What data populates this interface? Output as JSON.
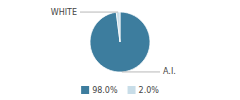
{
  "chart_data": {
    "type": "pie",
    "categories": [
      "A.I.",
      "WHITE"
    ],
    "values": [
      98.0,
      2.0
    ],
    "value_labels": [
      "98.0%",
      "2.0%"
    ],
    "colors": [
      "#3d7d9e",
      "#c8dde8"
    ],
    "legend": "bottom"
  }
}
